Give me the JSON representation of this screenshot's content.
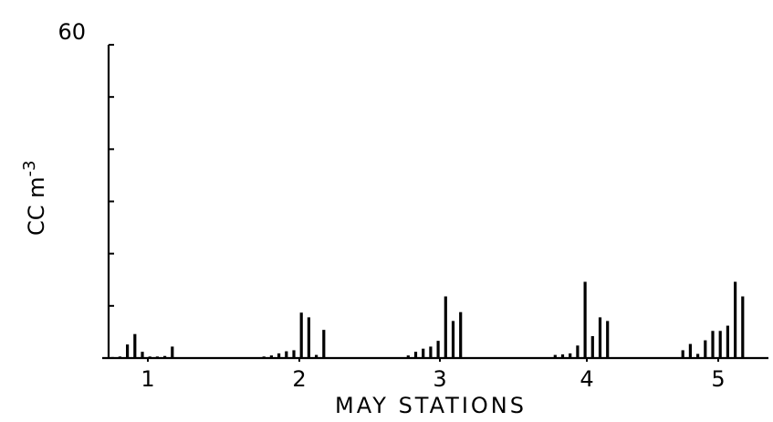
{
  "chart_data": {
    "type": "bar",
    "title": "",
    "xlabel": "MAY STATIONS",
    "ylabel_main": "CC m",
    "ylabel_exponent": "-3",
    "ylim": [
      0,
      60
    ],
    "y_ticks": [
      0,
      10,
      20,
      30,
      40,
      50,
      60
    ],
    "y_tick_labels": [
      {
        "value": 60,
        "label": "60"
      }
    ],
    "grid": false,
    "legend": "none",
    "categories": [
      "1",
      "2",
      "3",
      "4",
      "5"
    ],
    "stations": [
      {
        "label": "1",
        "values": [
          0.2,
          0.3,
          2.6,
          4.6,
          1.2,
          0.3,
          0.3,
          0.4,
          2.2
        ]
      },
      {
        "label": "2",
        "values": [
          0.3,
          0.5,
          0.9,
          1.3,
          1.5,
          8.7,
          7.8,
          0.6,
          5.4
        ]
      },
      {
        "label": "3",
        "values": [
          0.5,
          1.2,
          1.8,
          2.2,
          3.3,
          11.8,
          7.1,
          8.8
        ]
      },
      {
        "label": "4",
        "values": [
          0.6,
          0.7,
          0.9,
          2.4,
          14.6,
          4.2,
          7.8,
          7.1
        ]
      },
      {
        "label": "5",
        "values": [
          1.5,
          2.7,
          0.8,
          3.4,
          5.2,
          5.2,
          6.2,
          14.6,
          11.8
        ]
      }
    ]
  }
}
